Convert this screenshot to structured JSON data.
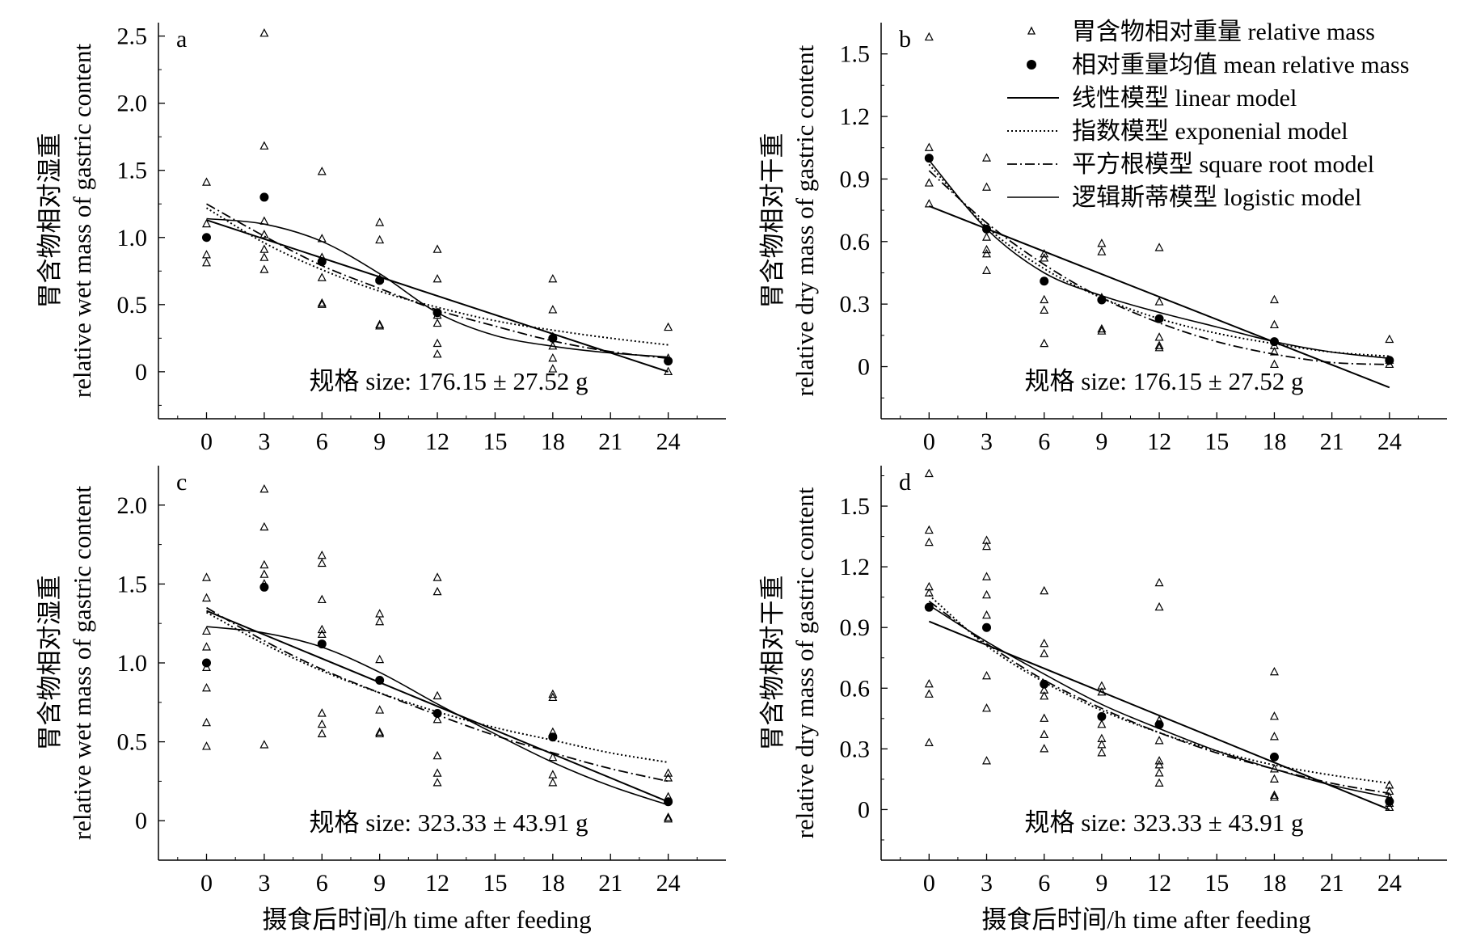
{
  "figure": {
    "xlabel": "摄食后时间/h time after feeding",
    "legend": {
      "raw": "胃含物相对重量 relative mass",
      "mean": "相对重量均值 mean relative mass",
      "linear": "线性模型 linear model",
      "exponential": "指数模型 exponenial model",
      "sqrt": "平方根模型 square root model",
      "logistic": "逻辑斯蒂模型 logistic model"
    }
  },
  "chart_data": [
    {
      "type": "scatter",
      "panel": "a",
      "ylabel_cn": "胃含物相对湿重",
      "ylabel_en": "relative wet mass of gastric content",
      "size_note": "规格 size: 176.15 ± 27.52 g",
      "xticks": [
        "0",
        "3",
        "6",
        "9",
        "12",
        "15",
        "18",
        "21",
        "24"
      ],
      "xticks_values": [
        0,
        3,
        6,
        9,
        12,
        15,
        18,
        21,
        24
      ],
      "yticks": [
        "0",
        "0.5",
        "1.0",
        "1.5",
        "2.0",
        "2.5"
      ],
      "yticks_values": [
        0,
        0.5,
        1.0,
        1.5,
        2.0,
        2.5
      ],
      "xlim": [
        -2.5,
        27
      ],
      "ylim": [
        -0.35,
        2.6
      ],
      "raw_points": [
        [
          0,
          1.41
        ],
        [
          0,
          1.1
        ],
        [
          0,
          0.87
        ],
        [
          0,
          0.81
        ],
        [
          3,
          2.52
        ],
        [
          3,
          1.68
        ],
        [
          3,
          1.12
        ],
        [
          3,
          1.02
        ],
        [
          3,
          0.91
        ],
        [
          3,
          0.85
        ],
        [
          3,
          0.76
        ],
        [
          6,
          1.49
        ],
        [
          6,
          0.99
        ],
        [
          6,
          0.85
        ],
        [
          6,
          0.7
        ],
        [
          6,
          0.51
        ],
        [
          6,
          0.5
        ],
        [
          9,
          1.11
        ],
        [
          9,
          0.98
        ],
        [
          9,
          0.69
        ],
        [
          9,
          0.35
        ],
        [
          9,
          0.34
        ],
        [
          12,
          0.91
        ],
        [
          12,
          0.69
        ],
        [
          12,
          0.42
        ],
        [
          12,
          0.36
        ],
        [
          12,
          0.21
        ],
        [
          12,
          0.13
        ],
        [
          18,
          0.69
        ],
        [
          18,
          0.46
        ],
        [
          18,
          0.26
        ],
        [
          18,
          0.19
        ],
        [
          18,
          0.1
        ],
        [
          18,
          0.02
        ],
        [
          24,
          0.33
        ],
        [
          24,
          0.1
        ],
        [
          24,
          0.0
        ]
      ],
      "means": [
        [
          0,
          1.0
        ],
        [
          3,
          1.3
        ],
        [
          6,
          0.82
        ],
        [
          9,
          0.68
        ],
        [
          12,
          0.44
        ],
        [
          18,
          0.25
        ],
        [
          24,
          0.08
        ]
      ],
      "models": {
        "linear": {
          "x": [
            0,
            24
          ],
          "y": [
            1.13,
            0.0
          ]
        },
        "exponential": {
          "x": [
            0,
            3,
            6,
            9,
            12,
            15,
            18,
            21,
            24
          ],
          "y": [
            1.22,
            0.96,
            0.76,
            0.6,
            0.48,
            0.38,
            0.31,
            0.25,
            0.2
          ]
        },
        "sqrt": {
          "x": [
            0,
            3,
            6,
            9,
            12,
            15,
            18,
            21,
            24
          ],
          "y": [
            1.25,
            1.01,
            0.79,
            0.62,
            0.46,
            0.34,
            0.23,
            0.15,
            0.1
          ]
        },
        "logistic": {
          "x": [
            0,
            3,
            6,
            9,
            12,
            15,
            18,
            21,
            24
          ],
          "y": [
            1.14,
            1.1,
            0.97,
            0.73,
            0.44,
            0.27,
            0.19,
            0.14,
            0.11
          ]
        }
      }
    },
    {
      "type": "scatter",
      "panel": "b",
      "ylabel_cn": "胃含物相对干重",
      "ylabel_en": "relative dry mass of gastric content",
      "size_note": "规格 size: 176.15 ± 27.52 g",
      "xticks": [
        "0",
        "3",
        "6",
        "9",
        "12",
        "15",
        "18",
        "21",
        "24"
      ],
      "xticks_values": [
        0,
        3,
        6,
        9,
        12,
        15,
        18,
        21,
        24
      ],
      "yticks": [
        "0",
        "0.3",
        "0.6",
        "0.9",
        "1.2",
        "1.5"
      ],
      "yticks_values": [
        0,
        0.3,
        0.6,
        0.9,
        1.2,
        1.5
      ],
      "xlim": [
        -2.5,
        27
      ],
      "ylim": [
        -0.25,
        1.65
      ],
      "raw_points": [
        [
          0,
          1.58
        ],
        [
          0,
          1.05
        ],
        [
          0,
          0.88
        ],
        [
          0,
          0.78
        ],
        [
          3,
          1.0
        ],
        [
          3,
          0.86
        ],
        [
          3,
          0.62
        ],
        [
          3,
          0.56
        ],
        [
          3,
          0.54
        ],
        [
          3,
          0.46
        ],
        [
          6,
          0.54
        ],
        [
          6,
          0.52
        ],
        [
          6,
          0.32
        ],
        [
          6,
          0.27
        ],
        [
          6,
          0.11
        ],
        [
          9,
          0.59
        ],
        [
          9,
          0.55
        ],
        [
          9,
          0.33
        ],
        [
          9,
          0.18
        ],
        [
          9,
          0.17
        ],
        [
          12,
          0.57
        ],
        [
          12,
          0.31
        ],
        [
          12,
          0.14
        ],
        [
          12,
          0.1
        ],
        [
          12,
          0.09
        ],
        [
          18,
          0.32
        ],
        [
          18,
          0.2
        ],
        [
          18,
          0.1
        ],
        [
          18,
          0.07
        ],
        [
          18,
          0.01
        ],
        [
          24,
          0.13
        ],
        [
          24,
          0.03
        ],
        [
          24,
          0.01
        ]
      ],
      "means": [
        [
          0,
          1.0
        ],
        [
          3,
          0.66
        ],
        [
          6,
          0.41
        ],
        [
          9,
          0.32
        ],
        [
          12,
          0.23
        ],
        [
          18,
          0.12
        ],
        [
          24,
          0.03
        ]
      ],
      "models": {
        "linear": {
          "x": [
            0,
            24
          ],
          "y": [
            0.77,
            -0.1
          ]
        },
        "exponential": {
          "x": [
            0,
            3,
            6,
            9,
            12,
            15,
            18,
            21,
            24
          ],
          "y": [
            0.97,
            0.67,
            0.47,
            0.33,
            0.23,
            0.16,
            0.11,
            0.07,
            0.05
          ]
        },
        "sqrt": {
          "x": [
            0,
            3,
            6,
            9,
            12,
            15,
            18,
            21,
            24
          ],
          "y": [
            0.94,
            0.69,
            0.49,
            0.33,
            0.21,
            0.12,
            0.06,
            0.02,
            0.01
          ]
        },
        "logistic": {
          "x": [
            0,
            3,
            6,
            9,
            12,
            15,
            18,
            21,
            24
          ],
          "y": [
            0.99,
            0.66,
            0.45,
            0.34,
            0.26,
            0.19,
            0.12,
            0.07,
            0.04
          ]
        }
      }
    },
    {
      "type": "scatter",
      "panel": "c",
      "ylabel_cn": "胃含物相对湿重",
      "ylabel_en": "relative wet mass of gastric content",
      "size_note": "规格 size: 323.33 ± 43.91 g",
      "xticks": [
        "0",
        "3",
        "6",
        "9",
        "12",
        "15",
        "18",
        "21",
        "24"
      ],
      "xticks_values": [
        0,
        3,
        6,
        9,
        12,
        15,
        18,
        21,
        24
      ],
      "yticks": [
        "0",
        "0.5",
        "1.0",
        "1.5",
        "2.0"
      ],
      "yticks_values": [
        0,
        0.5,
        1.0,
        1.5,
        2.0
      ],
      "xlim": [
        -2.5,
        27
      ],
      "ylim": [
        -0.25,
        2.25
      ],
      "raw_points": [
        [
          0,
          1.54
        ],
        [
          0,
          1.41
        ],
        [
          0,
          1.2
        ],
        [
          0,
          1.1
        ],
        [
          0,
          0.97
        ],
        [
          0,
          0.84
        ],
        [
          0,
          0.62
        ],
        [
          0,
          0.47
        ],
        [
          3,
          2.1
        ],
        [
          3,
          1.86
        ],
        [
          3,
          1.62
        ],
        [
          3,
          1.56
        ],
        [
          3,
          1.5
        ],
        [
          3,
          0.48
        ],
        [
          6,
          1.68
        ],
        [
          6,
          1.63
        ],
        [
          6,
          1.4
        ],
        [
          6,
          1.21
        ],
        [
          6,
          1.18
        ],
        [
          6,
          0.68
        ],
        [
          6,
          0.61
        ],
        [
          6,
          0.55
        ],
        [
          9,
          1.31
        ],
        [
          9,
          1.26
        ],
        [
          9,
          1.02
        ],
        [
          9,
          0.7
        ],
        [
          9,
          0.56
        ],
        [
          9,
          0.55
        ],
        [
          12,
          1.54
        ],
        [
          12,
          1.45
        ],
        [
          12,
          0.79
        ],
        [
          12,
          0.64
        ],
        [
          12,
          0.41
        ],
        [
          12,
          0.3
        ],
        [
          12,
          0.24
        ],
        [
          18,
          0.8
        ],
        [
          18,
          0.78
        ],
        [
          18,
          0.56
        ],
        [
          18,
          0.4
        ],
        [
          18,
          0.29
        ],
        [
          18,
          0.24
        ],
        [
          24,
          0.3
        ],
        [
          24,
          0.27
        ],
        [
          24,
          0.15
        ],
        [
          24,
          0.02
        ],
        [
          24,
          0.01
        ]
      ],
      "means": [
        [
          0,
          1.0
        ],
        [
          3,
          1.48
        ],
        [
          6,
          1.12
        ],
        [
          9,
          0.89
        ],
        [
          12,
          0.68
        ],
        [
          18,
          0.53
        ],
        [
          24,
          0.12
        ]
      ],
      "models": {
        "linear": {
          "x": [
            0,
            24
          ],
          "y": [
            1.33,
            0.12
          ]
        },
        "exponential": {
          "x": [
            0,
            3,
            6,
            9,
            12,
            15,
            18,
            21,
            24
          ],
          "y": [
            1.32,
            1.12,
            0.95,
            0.81,
            0.69,
            0.59,
            0.51,
            0.43,
            0.37
          ]
        },
        "sqrt": {
          "x": [
            0,
            3,
            6,
            9,
            12,
            15,
            18,
            21,
            24
          ],
          "y": [
            1.35,
            1.14,
            0.96,
            0.81,
            0.67,
            0.54,
            0.43,
            0.33,
            0.25
          ]
        },
        "logistic": {
          "x": [
            0,
            3,
            6,
            9,
            12,
            15,
            18,
            21,
            24
          ],
          "y": [
            1.23,
            1.19,
            1.1,
            0.94,
            0.74,
            0.55,
            0.37,
            0.22,
            0.1
          ]
        }
      }
    },
    {
      "type": "scatter",
      "panel": "d",
      "ylabel_cn": "胃含物相对干重",
      "ylabel_en": "relative dry mass of gastric content",
      "size_note": "规格 size: 323.33 ± 43.91 g",
      "xticks": [
        "0",
        "3",
        "6",
        "9",
        "12",
        "15",
        "18",
        "21",
        "24"
      ],
      "xticks_values": [
        0,
        3,
        6,
        9,
        12,
        15,
        18,
        21,
        24
      ],
      "yticks": [
        "0",
        "0.3",
        "0.6",
        "0.9",
        "1.2",
        "1.5"
      ],
      "yticks_values": [
        0,
        0.3,
        0.6,
        0.9,
        1.2,
        1.5
      ],
      "xlim": [
        -2.5,
        27
      ],
      "ylim": [
        -0.25,
        1.7
      ],
      "raw_points": [
        [
          0,
          1.66
        ],
        [
          0,
          1.38
        ],
        [
          0,
          1.32
        ],
        [
          0,
          1.1
        ],
        [
          0,
          1.07
        ],
        [
          0,
          0.62
        ],
        [
          0,
          0.57
        ],
        [
          0,
          0.33
        ],
        [
          3,
          1.33
        ],
        [
          3,
          1.3
        ],
        [
          3,
          1.15
        ],
        [
          3,
          1.06
        ],
        [
          3,
          0.96
        ],
        [
          3,
          0.66
        ],
        [
          3,
          0.5
        ],
        [
          3,
          0.24
        ],
        [
          6,
          1.08
        ],
        [
          6,
          0.82
        ],
        [
          6,
          0.77
        ],
        [
          6,
          0.59
        ],
        [
          6,
          0.56
        ],
        [
          6,
          0.45
        ],
        [
          6,
          0.37
        ],
        [
          6,
          0.3
        ],
        [
          9,
          0.61
        ],
        [
          9,
          0.58
        ],
        [
          9,
          0.42
        ],
        [
          9,
          0.35
        ],
        [
          9,
          0.32
        ],
        [
          9,
          0.28
        ],
        [
          12,
          1.12
        ],
        [
          12,
          1.0
        ],
        [
          12,
          0.44
        ],
        [
          12,
          0.34
        ],
        [
          12,
          0.24
        ],
        [
          12,
          0.22
        ],
        [
          12,
          0.18
        ],
        [
          12,
          0.13
        ],
        [
          18,
          0.68
        ],
        [
          18,
          0.46
        ],
        [
          18,
          0.36
        ],
        [
          18,
          0.2
        ],
        [
          18,
          0.15
        ],
        [
          18,
          0.07
        ],
        [
          18,
          0.06
        ],
        [
          24,
          0.12
        ],
        [
          24,
          0.09
        ],
        [
          24,
          0.06
        ],
        [
          24,
          0.03
        ],
        [
          24,
          0.01
        ]
      ],
      "means": [
        [
          0,
          1.0
        ],
        [
          3,
          0.9
        ],
        [
          6,
          0.62
        ],
        [
          9,
          0.46
        ],
        [
          12,
          0.42
        ],
        [
          18,
          0.26
        ],
        [
          24,
          0.04
        ]
      ],
      "models": {
        "linear": {
          "x": [
            0,
            24
          ],
          "y": [
            0.93,
            0.0
          ]
        },
        "exponential": {
          "x": [
            0,
            3,
            6,
            9,
            12,
            15,
            18,
            21,
            24
          ],
          "y": [
            1.06,
            0.81,
            0.63,
            0.49,
            0.38,
            0.29,
            0.22,
            0.17,
            0.13
          ]
        },
        "sqrt": {
          "x": [
            0,
            3,
            6,
            9,
            12,
            15,
            18,
            21,
            24
          ],
          "y": [
            1.03,
            0.82,
            0.64,
            0.5,
            0.38,
            0.28,
            0.2,
            0.13,
            0.08
          ]
        },
        "logistic": {
          "x": [
            0,
            3,
            6,
            9,
            12,
            15,
            18,
            21,
            24
          ],
          "y": [
            1.01,
            0.83,
            0.67,
            0.52,
            0.4,
            0.29,
            0.2,
            0.12,
            0.06
          ]
        }
      }
    }
  ]
}
